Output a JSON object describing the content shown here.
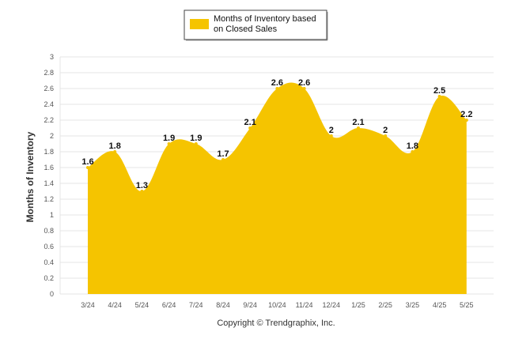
{
  "chart_data": {
    "type": "area",
    "categories": [
      "3/24",
      "4/24",
      "5/24",
      "6/24",
      "7/24",
      "8/24",
      "9/24",
      "10/24",
      "11/24",
      "12/24",
      "1/25",
      "2/25",
      "3/25",
      "4/25",
      "5/25"
    ],
    "series": [
      {
        "name": "Months of Inventory based on Closed Sales",
        "values": [
          1.6,
          1.8,
          1.3,
          1.9,
          1.9,
          1.7,
          2.1,
          2.6,
          2.6,
          2,
          2.1,
          2,
          1.8,
          2.5,
          2.2
        ],
        "color": "#F5C400"
      }
    ],
    "legend_lines": [
      "Months of Inventory based",
      "on Closed Sales"
    ],
    "ylabel": "Months of Inventory",
    "ylim": [
      0,
      3
    ],
    "yticks": [
      "0",
      "0.2",
      "0.4",
      "0.6",
      "0.8",
      "1",
      "1.2",
      "1.4",
      "1.6",
      "1.8",
      "2",
      "2.2",
      "2.4",
      "2.6",
      "2.8",
      "3"
    ],
    "grid": true,
    "legend_position": "top-center"
  },
  "footer": {
    "copyright": "Copyright © Trendgraphix, Inc."
  }
}
